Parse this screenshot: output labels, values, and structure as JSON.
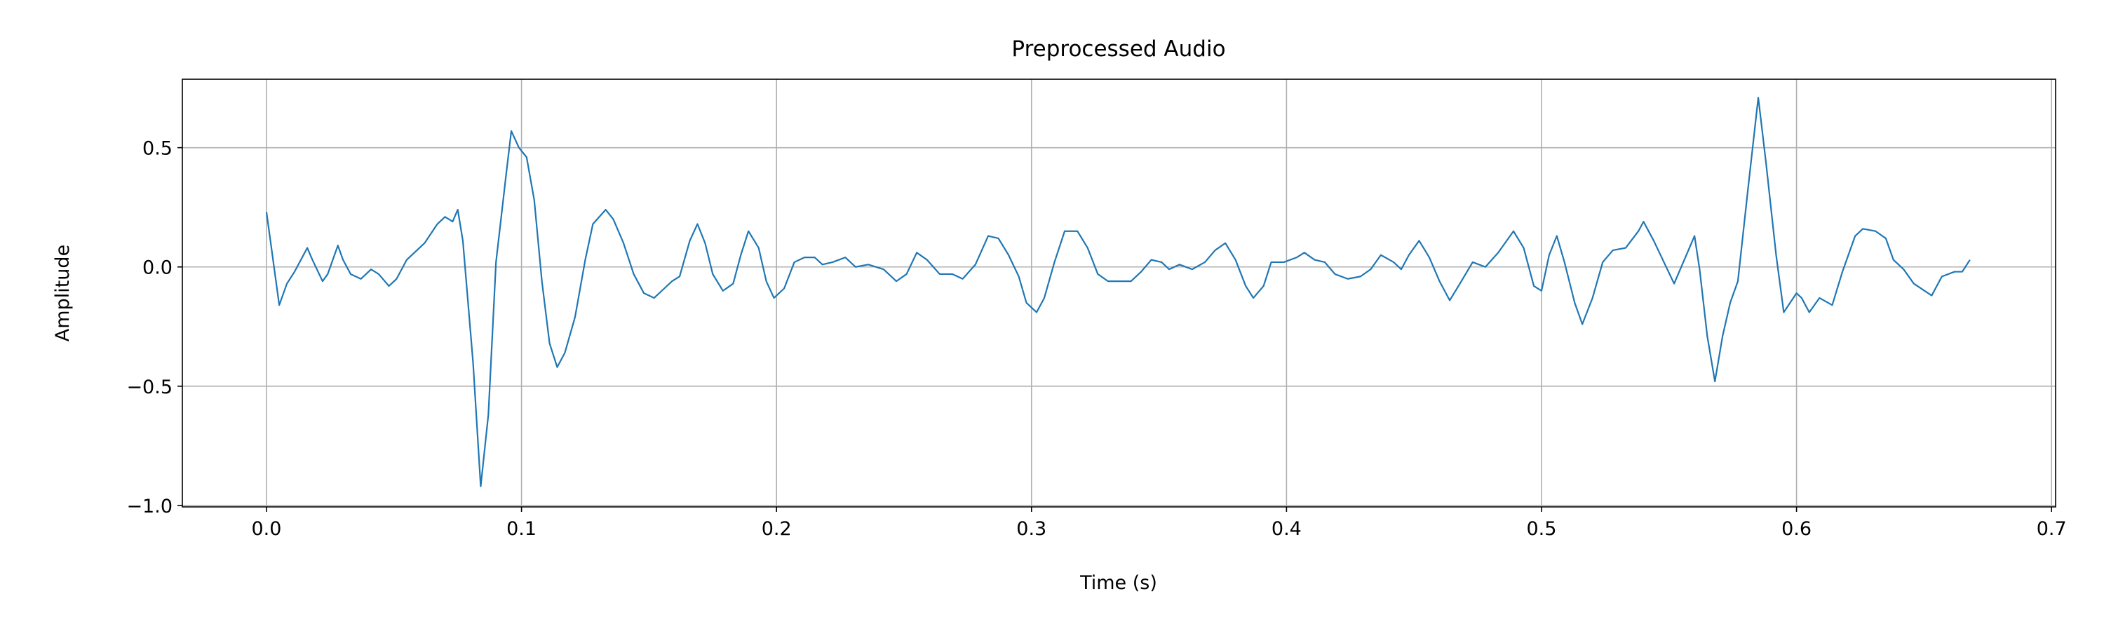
{
  "chart_data": {
    "type": "line",
    "title": "Preprocessed Audio",
    "xlabel": "Time (s)",
    "ylabel": "Amplitude",
    "color": "#1f77b4",
    "grid": true,
    "xlim": [
      -0.033,
      0.7016
    ],
    "ylim": [
      -1.006,
      0.787
    ],
    "xticks": [
      {
        "value": 0,
        "label": "0.0"
      },
      {
        "value": 0.1,
        "label": "0.1"
      },
      {
        "value": 0.2,
        "label": "0.2"
      },
      {
        "value": 0.3,
        "label": "0.3"
      },
      {
        "value": 0.4,
        "label": "0.4"
      },
      {
        "value": 0.5,
        "label": "0.5"
      },
      {
        "value": 0.6,
        "label": "0.6"
      },
      {
        "value": 0.7,
        "label": "0.7"
      }
    ],
    "yticks": [
      {
        "value": -1,
        "label": "−1.0"
      },
      {
        "value": -0.5,
        "label": "−0.5"
      },
      {
        "value": 0,
        "label": "0.0"
      },
      {
        "value": 0.5,
        "label": "0.5"
      }
    ],
    "x": [
      0,
      0.005,
      0.008,
      0.011,
      0.016,
      0.018,
      0.022,
      0.024,
      0.028,
      0.03,
      0.033,
      0.037,
      0.041,
      0.044,
      0.048,
      0.051,
      0.055,
      0.062,
      0.067,
      0.07,
      0.073,
      0.075,
      0.077,
      0.081,
      0.084,
      0.087,
      0.09,
      0.094,
      0.096,
      0.099,
      0.102,
      0.105,
      0.108,
      0.111,
      0.114,
      0.117,
      0.121,
      0.125,
      0.128,
      0.133,
      0.136,
      0.14,
      0.144,
      0.148,
      0.152,
      0.156,
      0.159,
      0.162,
      0.166,
      0.169,
      0.172,
      0.175,
      0.179,
      0.183,
      0.186,
      0.189,
      0.193,
      0.196,
      0.199,
      0.203,
      0.207,
      0.211,
      0.215,
      0.218,
      0.222,
      0.227,
      0.231,
      0.236,
      0.242,
      0.247,
      0.251,
      0.255,
      0.259,
      0.264,
      0.269,
      0.273,
      0.278,
      0.283,
      0.287,
      0.291,
      0.295,
      0.298,
      0.302,
      0.305,
      0.309,
      0.313,
      0.318,
      0.322,
      0.326,
      0.33,
      0.334,
      0.339,
      0.343,
      0.347,
      0.351,
      0.354,
      0.358,
      0.363,
      0.368,
      0.372,
      0.376,
      0.38,
      0.384,
      0.387,
      0.391,
      0.394,
      0.399,
      0.404,
      0.407,
      0.411,
      0.415,
      0.419,
      0.424,
      0.429,
      0.433,
      0.437,
      0.442,
      0.445,
      0.448,
      0.452,
      0.456,
      0.46,
      0.464,
      0.468,
      0.473,
      0.478,
      0.483,
      0.489,
      0.493,
      0.497,
      0.5,
      0.503,
      0.506,
      0.509,
      0.513,
      0.516,
      0.52,
      0.524,
      0.528,
      0.533,
      0.538,
      0.54,
      0.544,
      0.548,
      0.552,
      0.556,
      0.56,
      0.562,
      0.565,
      0.568,
      0.571,
      0.574,
      0.577,
      0.581,
      0.585,
      0.588,
      0.592,
      0.595,
      0.6,
      0.602,
      0.605,
      0.609,
      0.614,
      0.618,
      0.623,
      0.626,
      0.631,
      0.635,
      0.638,
      0.642,
      0.646,
      0.653,
      0.657,
      0.662,
      0.665,
      0.668
    ],
    "values": [
      0.23,
      -0.16,
      -0.07,
      -0.02,
      0.08,
      0.03,
      -0.06,
      -0.03,
      0.09,
      0.03,
      -0.03,
      -0.05,
      -0.01,
      -0.03,
      -0.08,
      -0.05,
      0.03,
      0.1,
      0.18,
      0.21,
      0.19,
      0.24,
      0.11,
      -0.4,
      -0.92,
      -0.62,
      0.02,
      0.39,
      0.57,
      0.5,
      0.46,
      0.28,
      -0.06,
      -0.32,
      -0.42,
      -0.36,
      -0.21,
      0.03,
      0.18,
      0.24,
      0.2,
      0.1,
      -0.03,
      -0.11,
      -0.13,
      -0.09,
      -0.06,
      -0.04,
      0.11,
      0.18,
      0.1,
      -0.03,
      -0.1,
      -0.07,
      0.05,
      0.15,
      0.08,
      -0.06,
      -0.13,
      -0.09,
      0.02,
      0.04,
      0.04,
      0.01,
      0.02,
      0.04,
      0,
      0.01,
      -0.01,
      -0.06,
      -0.03,
      0.06,
      0.03,
      -0.03,
      -0.03,
      -0.05,
      0.01,
      0.13,
      0.12,
      0.05,
      -0.04,
      -0.15,
      -0.19,
      -0.13,
      0.02,
      0.15,
      0.15,
      0.08,
      -0.03,
      -0.06,
      -0.06,
      -0.06,
      -0.02,
      0.03,
      0.02,
      -0.01,
      0.01,
      -0.01,
      0.02,
      0.07,
      0.1,
      0.03,
      -0.08,
      -0.13,
      -0.08,
      0.02,
      0.02,
      0.04,
      0.06,
      0.03,
      0.02,
      -0.03,
      -0.05,
      -0.04,
      -0.01,
      0.05,
      0.02,
      -0.01,
      0.05,
      0.11,
      0.04,
      -0.06,
      -0.14,
      -0.07,
      0.02,
      0,
      0.06,
      0.15,
      0.08,
      -0.08,
      -0.1,
      0.05,
      0.13,
      0.02,
      -0.15,
      -0.24,
      -0.13,
      0.02,
      0.07,
      0.08,
      0.15,
      0.19,
      0.11,
      0.02,
      -0.07,
      0.03,
      0.13,
      -0.01,
      -0.29,
      -0.48,
      -0.29,
      -0.15,
      -0.06,
      0.33,
      0.71,
      0.44,
      0.05,
      -0.19,
      -0.11,
      -0.13,
      -0.19,
      -0.13,
      -0.16,
      -0.02,
      0.13,
      0.16,
      0.15,
      0.12,
      0.03,
      -0.01,
      -0.07,
      -0.12,
      -0.04,
      -0.02,
      -0.02,
      0.03
    ]
  }
}
